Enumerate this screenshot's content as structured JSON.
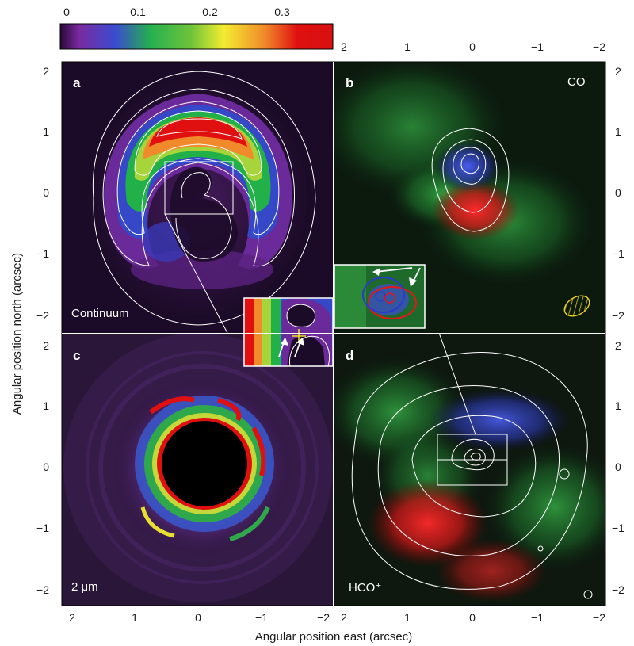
{
  "colorbar": {
    "ticks": [
      "0",
      "0.1",
      "0.2",
      "0.3"
    ],
    "colors": [
      "#2a0a3a",
      "#7a2aa0",
      "#3b4bd0",
      "#24b050",
      "#6ec43a",
      "#f4ec30",
      "#f08a2a",
      "#e01010",
      "#d81010"
    ]
  },
  "axes": {
    "x_title": "Angular position east (arcsec)",
    "y_title": "Angular position north (arcsec)",
    "x_ticks": [
      "2",
      "1",
      "0",
      "−1",
      "−2"
    ],
    "y_ticks": [
      "2",
      "1",
      "0",
      "−1",
      "−2"
    ],
    "top_x_ticks": [
      "2",
      "1",
      "0",
      "−1",
      "−2"
    ],
    "right_y_ticks": [
      "2",
      "1",
      "0",
      "−1",
      "−2"
    ]
  },
  "panels": {
    "a": {
      "letter": "a",
      "tag": "Continuum"
    },
    "b": {
      "letter": "b",
      "tag": "CO"
    },
    "c": {
      "letter": "c",
      "tag": "2 μm"
    },
    "d": {
      "letter": "d",
      "tag": "HCO⁺"
    }
  },
  "colors": {
    "contour": "#ffffff",
    "co_red": "#e01818",
    "co_blue": "#2a3ad0",
    "co_green": "#2aa23a",
    "beam": "#e8d020",
    "inset_cross": "#f0e020"
  }
}
